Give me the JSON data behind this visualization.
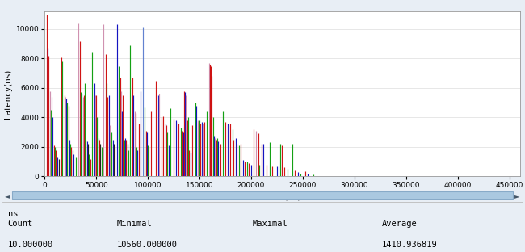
{
  "xlabel": "Time(ns)",
  "ylabel": "Latency(ns)",
  "xlim": [
    0,
    460000
  ],
  "ylim": [
    0,
    11200
  ],
  "yticks": [
    0,
    2000,
    4000,
    6000,
    8000,
    10000
  ],
  "xticks": [
    0,
    50000,
    100000,
    150000,
    200000,
    250000,
    300000,
    350000,
    400000,
    450000
  ],
  "colors": [
    "#cc0000",
    "#0000bb",
    "#009900",
    "#8833cc",
    "#cc6600",
    "#006688",
    "#884400",
    "#111111",
    "#cc88aa",
    "#5577cc",
    "#77cc33",
    "#ccaa00"
  ],
  "bg_color": "#e8eef5",
  "plot_bg": "#ffffff",
  "border_color": "#aabbcc",
  "scrollbar_bg": "#c8daea",
  "scrollbar_handle": "#aac8e0",
  "footer_bg": "#ffffff",
  "seed": 12345,
  "max_time": 265000,
  "max_latency": 11000,
  "spike_data": [
    [
      2000,
      11000,
      "#cc0000"
    ],
    [
      3000,
      8700,
      "#0000bb"
    ],
    [
      4000,
      8200,
      "#cc0000"
    ],
    [
      5000,
      5800,
      "#cc88aa"
    ],
    [
      6000,
      4500,
      "#009900"
    ],
    [
      7000,
      5400,
      "#cc88aa"
    ],
    [
      8000,
      4000,
      "#0000bb"
    ],
    [
      9000,
      2100,
      "#cc0000"
    ],
    [
      10000,
      2000,
      "#009900"
    ],
    [
      11000,
      1800,
      "#cc0000"
    ],
    [
      12000,
      1300,
      "#0000bb"
    ],
    [
      14000,
      1200,
      "#111111"
    ],
    [
      16000,
      8100,
      "#cc0000"
    ],
    [
      17000,
      7800,
      "#009900"
    ],
    [
      19000,
      5500,
      "#cc0000"
    ],
    [
      20000,
      5400,
      "#cc88aa"
    ],
    [
      21000,
      5300,
      "#0000bb"
    ],
    [
      22000,
      5000,
      "#009900"
    ],
    [
      23000,
      4800,
      "#cc0000"
    ],
    [
      24000,
      2500,
      "#0000bb"
    ],
    [
      25000,
      2200,
      "#009900"
    ],
    [
      26000,
      2000,
      "#cc0000"
    ],
    [
      27000,
      1800,
      "#111111"
    ],
    [
      28000,
      1500,
      "#0000bb"
    ],
    [
      30000,
      1300,
      "#009900"
    ],
    [
      33000,
      10400,
      "#cc88aa"
    ],
    [
      34000,
      9200,
      "#cc0000"
    ],
    [
      35000,
      5700,
      "#009900"
    ],
    [
      36000,
      5600,
      "#0000bb"
    ],
    [
      37000,
      5400,
      "#cc88aa"
    ],
    [
      38000,
      5500,
      "#cc0000"
    ],
    [
      39000,
      6300,
      "#009900"
    ],
    [
      40000,
      2500,
      "#cc0000"
    ],
    [
      41000,
      2400,
      "#0000bb"
    ],
    [
      42000,
      2200,
      "#111111"
    ],
    [
      43000,
      1500,
      "#009900"
    ],
    [
      44000,
      1200,
      "#cc0000"
    ],
    [
      46000,
      8400,
      "#009900"
    ],
    [
      48000,
      6300,
      "#0000bb"
    ],
    [
      49000,
      5500,
      "#cc88aa"
    ],
    [
      50000,
      5500,
      "#cc0000"
    ],
    [
      51000,
      4000,
      "#009900"
    ],
    [
      52000,
      2600,
      "#0000bb"
    ],
    [
      53000,
      2500,
      "#cc0000"
    ],
    [
      54000,
      2200,
      "#111111"
    ],
    [
      55000,
      2000,
      "#009900"
    ],
    [
      57000,
      10300,
      "#cc88aa"
    ],
    [
      59000,
      8300,
      "#cc0000"
    ],
    [
      60000,
      6300,
      "#009900"
    ],
    [
      61000,
      5400,
      "#cc0000"
    ],
    [
      62000,
      5500,
      "#0000bb"
    ],
    [
      63000,
      3500,
      "#cc88aa"
    ],
    [
      64000,
      2500,
      "#cc0000"
    ],
    [
      65000,
      3000,
      "#009900"
    ],
    [
      66000,
      2500,
      "#0000bb"
    ],
    [
      67000,
      2200,
      "#111111"
    ],
    [
      68000,
      2000,
      "#cc0000"
    ],
    [
      70000,
      10300,
      "#0000bb"
    ],
    [
      72000,
      7500,
      "#009900"
    ],
    [
      73000,
      6700,
      "#cc0000"
    ],
    [
      74000,
      5800,
      "#cc88aa"
    ],
    [
      75000,
      4400,
      "#0000bb"
    ],
    [
      76000,
      5500,
      "#cc0000"
    ],
    [
      77000,
      2500,
      "#009900"
    ],
    [
      78000,
      2600,
      "#0000bb"
    ],
    [
      79000,
      2500,
      "#cc0000"
    ],
    [
      80000,
      2200,
      "#111111"
    ],
    [
      81000,
      1800,
      "#009900"
    ],
    [
      83000,
      8900,
      "#009900"
    ],
    [
      85000,
      6700,
      "#cc0000"
    ],
    [
      86000,
      5500,
      "#0000bb"
    ],
    [
      87000,
      4400,
      "#cc88aa"
    ],
    [
      88000,
      4300,
      "#cc0000"
    ],
    [
      89000,
      2000,
      "#009900"
    ],
    [
      90000,
      1800,
      "#0000bb"
    ],
    [
      91000,
      3600,
      "#cc0000"
    ],
    [
      93000,
      5800,
      "#0000bb"
    ],
    [
      95000,
      10100,
      "#5577cc"
    ],
    [
      97000,
      4700,
      "#009900"
    ],
    [
      98000,
      3100,
      "#cc0000"
    ],
    [
      99000,
      3000,
      "#0000bb"
    ],
    [
      100000,
      2100,
      "#009900"
    ],
    [
      101000,
      2000,
      "#cc0000"
    ],
    [
      103000,
      4400,
      "#cc0000"
    ],
    [
      108000,
      6500,
      "#cc0000"
    ],
    [
      110000,
      5500,
      "#0000bb"
    ],
    [
      111000,
      5600,
      "#cc88aa"
    ],
    [
      113000,
      4000,
      "#cc0000"
    ],
    [
      115000,
      4100,
      "#cc0000"
    ],
    [
      117000,
      3600,
      "#0000bb"
    ],
    [
      118000,
      3500,
      "#cc0000"
    ],
    [
      119000,
      3000,
      "#009900"
    ],
    [
      120000,
      2100,
      "#0000bb"
    ],
    [
      122000,
      4600,
      "#009900"
    ],
    [
      125000,
      3900,
      "#cc0000"
    ],
    [
      127000,
      3800,
      "#0000bb"
    ],
    [
      129000,
      3700,
      "#cc88aa"
    ],
    [
      130000,
      3600,
      "#cc0000"
    ],
    [
      132000,
      3300,
      "#009900"
    ],
    [
      133000,
      3100,
      "#cc0000"
    ],
    [
      134000,
      3000,
      "#0000bb"
    ],
    [
      135000,
      5800,
      "#cc0000"
    ],
    [
      136000,
      5700,
      "#0000bb"
    ],
    [
      137000,
      5500,
      "#cc88aa"
    ],
    [
      138000,
      3800,
      "#cc0000"
    ],
    [
      139000,
      4000,
      "#009900"
    ],
    [
      140000,
      1800,
      "#cc0000"
    ],
    [
      141000,
      1600,
      "#0000bb"
    ],
    [
      143000,
      3500,
      "#cc0000"
    ],
    [
      146000,
      5000,
      "#009900"
    ],
    [
      147000,
      4800,
      "#0000bb"
    ],
    [
      148000,
      3800,
      "#cc88aa"
    ],
    [
      149000,
      3700,
      "#cc0000"
    ],
    [
      150000,
      3800,
      "#009900"
    ],
    [
      151000,
      3600,
      "#cc0000"
    ],
    [
      152000,
      3700,
      "#0000bb"
    ],
    [
      153000,
      3600,
      "#cc88aa"
    ],
    [
      155000,
      3700,
      "#cc0000"
    ],
    [
      157000,
      4400,
      "#009900"
    ],
    [
      159000,
      7700,
      "#cc88aa"
    ],
    [
      160000,
      7600,
      "#cc0000"
    ],
    [
      161000,
      7500,
      "#cc0000"
    ],
    [
      162000,
      6800,
      "#cc0000"
    ],
    [
      163000,
      4000,
      "#009900"
    ],
    [
      164000,
      2700,
      "#0000bb"
    ],
    [
      165000,
      2600,
      "#cc88aa"
    ],
    [
      166000,
      2500,
      "#cc0000"
    ],
    [
      167000,
      2600,
      "#009900"
    ],
    [
      168000,
      2400,
      "#0000bb"
    ],
    [
      170000,
      2200,
      "#cc0000"
    ],
    [
      173000,
      4400,
      "#009900"
    ],
    [
      175000,
      3700,
      "#cc0000"
    ],
    [
      177000,
      3600,
      "#0000bb"
    ],
    [
      178000,
      3500,
      "#cc88aa"
    ],
    [
      180000,
      3600,
      "#cc0000"
    ],
    [
      182000,
      3200,
      "#009900"
    ],
    [
      183000,
      2500,
      "#cc0000"
    ],
    [
      185000,
      2600,
      "#0000bb"
    ],
    [
      186000,
      2200,
      "#cc0000"
    ],
    [
      188000,
      2100,
      "#009900"
    ],
    [
      190000,
      2200,
      "#cc0000"
    ],
    [
      192000,
      1100,
      "#0000bb"
    ],
    [
      194000,
      1000,
      "#cc0000"
    ],
    [
      196000,
      1000,
      "#009900"
    ],
    [
      198000,
      900,
      "#cc0000"
    ],
    [
      200000,
      800,
      "#0000bb"
    ],
    [
      202000,
      3200,
      "#cc0000"
    ],
    [
      205000,
      3100,
      "#cc88aa"
    ],
    [
      207000,
      2900,
      "#cc0000"
    ],
    [
      208000,
      800,
      "#009900"
    ],
    [
      210000,
      2200,
      "#cc0000"
    ],
    [
      212000,
      2200,
      "#0000bb"
    ],
    [
      215000,
      800,
      "#cc0000"
    ],
    [
      218000,
      2300,
      "#009900"
    ],
    [
      220000,
      700,
      "#cc0000"
    ],
    [
      225000,
      700,
      "#0000bb"
    ],
    [
      228000,
      2200,
      "#009900"
    ],
    [
      230000,
      2100,
      "#cc0000"
    ],
    [
      232000,
      600,
      "#cc0000"
    ],
    [
      235000,
      500,
      "#009900"
    ],
    [
      240000,
      2200,
      "#009900"
    ],
    [
      242000,
      400,
      "#cc0000"
    ],
    [
      245000,
      300,
      "#0000bb"
    ],
    [
      248000,
      200,
      "#009900"
    ],
    [
      252000,
      350,
      "#cc0000"
    ],
    [
      255000,
      200,
      "#0000bb"
    ],
    [
      260000,
      150,
      "#009900"
    ]
  ]
}
